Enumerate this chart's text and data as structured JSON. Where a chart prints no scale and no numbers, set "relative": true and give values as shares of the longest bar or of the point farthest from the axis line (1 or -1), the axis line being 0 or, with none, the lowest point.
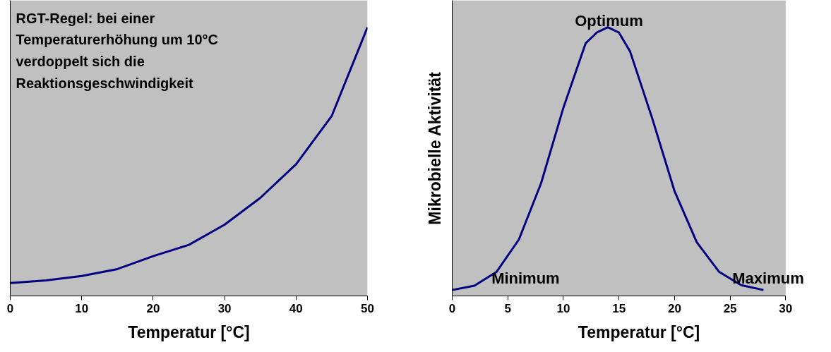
{
  "chart_data": [
    {
      "type": "line",
      "relative": true,
      "xlabel": "Temperatur [°C]",
      "xlim": [
        0,
        50
      ],
      "xticks": [
        0,
        10,
        20,
        30,
        40,
        50
      ],
      "tick_labels": "x",
      "marker": "none",
      "line_style": "solid",
      "annotations": [
        "RGT-Regel: bei einer\nTemperaturerhöhung um 10°C\nverdoppelt sich die\nReaktionsgeschwindigkeit"
      ],
      "series": [
        {
          "color": "#000080",
          "x": [
            0,
            5,
            10,
            15,
            20,
            25,
            30,
            35,
            40,
            45,
            50
          ],
          "values": [
            0.048,
            0.058,
            0.074,
            0.1,
            0.148,
            0.19,
            0.265,
            0.365,
            0.49,
            0.67,
            1
          ]
        }
      ]
    },
    {
      "type": "line",
      "relative": true,
      "xlabel": "Temperatur [°C]",
      "ylabel": "Mikrobielle Aktivität",
      "xlim": [
        0,
        30
      ],
      "xticks": [
        0,
        5,
        10,
        15,
        20,
        25,
        30
      ],
      "tick_labels": "x",
      "marker": "none",
      "line_style": "solid",
      "annotations": [
        "Optimum",
        "Minimum",
        "Maximum"
      ],
      "series": [
        {
          "color": "#000080",
          "x": [
            0,
            2,
            4,
            6,
            8,
            10,
            12,
            13,
            14,
            15,
            16,
            18,
            20,
            22,
            24,
            26,
            28
          ],
          "values": [
            0.022,
            0.038,
            0.09,
            0.21,
            0.42,
            0.7,
            0.94,
            0.98,
            1,
            0.98,
            0.91,
            0.66,
            0.39,
            0.2,
            0.09,
            0.04,
            0.022
          ]
        }
      ]
    }
  ]
}
